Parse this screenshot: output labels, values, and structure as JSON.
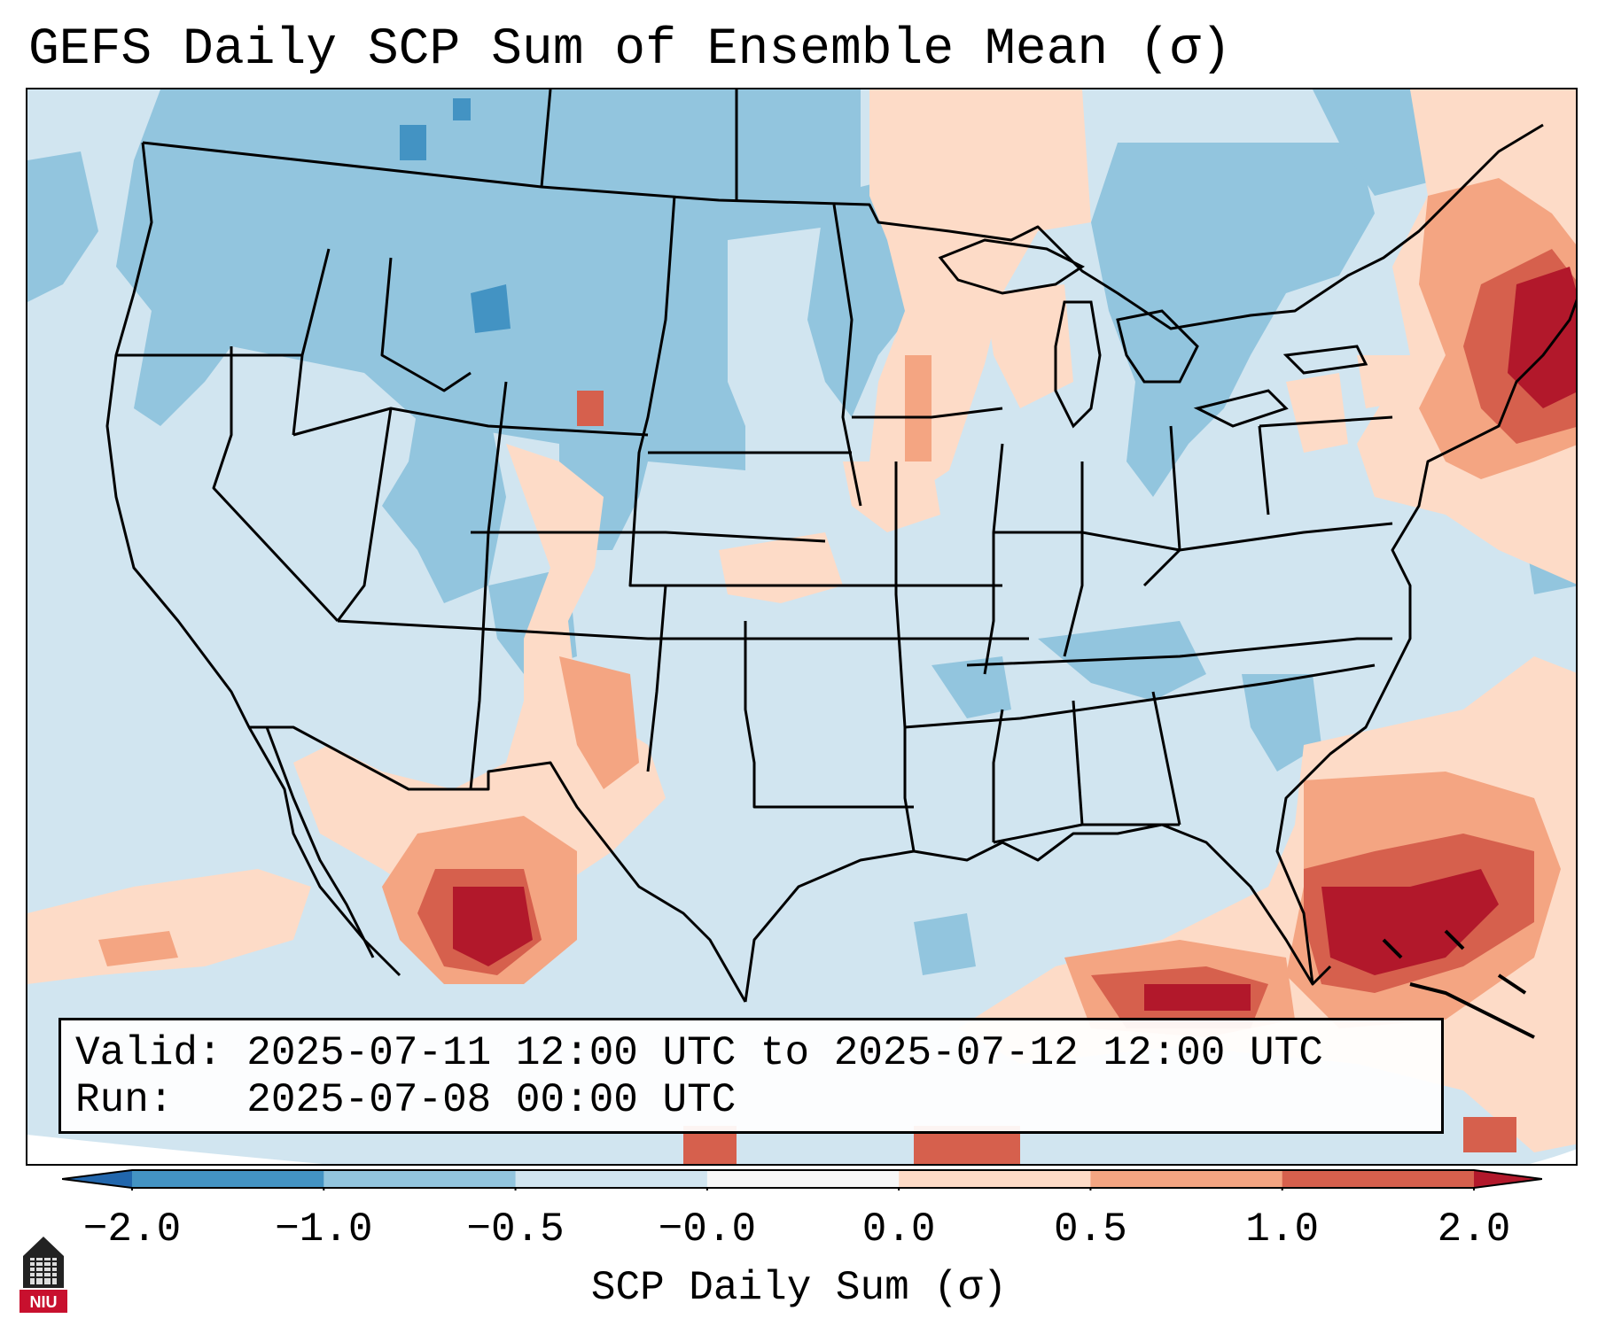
{
  "title": "GEFS Daily SCP Sum of Ensemble Mean (σ)",
  "valid_text": "Valid: 2025-07-11 12:00 UTC to 2025-07-12 12:00 UTC",
  "run_text": "Run:   2025-07-08 00:00 UTC",
  "colorbar": {
    "label": "SCP Daily Sum (σ)",
    "ticks": [
      "−2.0",
      "−1.0",
      "−0.5",
      "−0.0",
      "0.0",
      "0.5",
      "1.0",
      "2.0"
    ],
    "bins": [
      {
        "from": -2.0,
        "to": -1.0,
        "color": "#4393c3"
      },
      {
        "from": -1.0,
        "to": -0.5,
        "color": "#92c5de"
      },
      {
        "from": -0.5,
        "to": 0.0,
        "color": "#d1e5f0"
      },
      {
        "from": 0.0,
        "to": 0.0,
        "color": "#f7f7f7"
      },
      {
        "from": 0.0,
        "to": 0.5,
        "color": "#fddbc7"
      },
      {
        "from": 0.5,
        "to": 1.0,
        "color": "#f4a582"
      },
      {
        "from": 1.0,
        "to": 2.0,
        "color": "#d6604d"
      }
    ],
    "under_color": "#2166ac",
    "over_color": "#b2182b"
  },
  "logo_text": "NIU",
  "colors": {
    "strong_pos": "#b2182b",
    "pos": "#d6604d",
    "weak_pos": "#f4a582",
    "slight_pos": "#fddbc7",
    "slight_neg": "#d1e5f0",
    "neg": "#92c5de",
    "strong_neg": "#4393c3"
  }
}
